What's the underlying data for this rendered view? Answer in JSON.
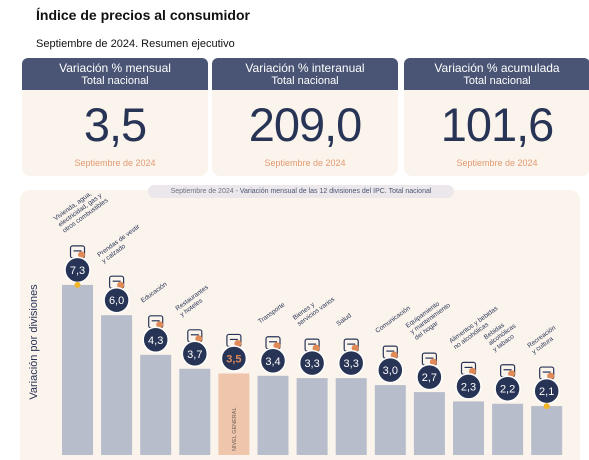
{
  "page": {
    "title": "Índice de precios al consumidor",
    "subtitle": "Septiembre de 2024. Resumen ejecutivo"
  },
  "kpis": [
    {
      "title": "Variación % mensual",
      "scope": "Total nacional",
      "value": "3,5",
      "date": "Septiembre de 2024"
    },
    {
      "title": "Variación % interanual",
      "scope": "Total nacional",
      "value": "209,0",
      "date": "Septiembre de 2024"
    },
    {
      "title": "Variación % acumulada",
      "scope": "Total nacional",
      "value": "101,6",
      "date": "Septiembre de 2024"
    }
  ],
  "chart_title": {
    "date_part": "Septiembre de 2024 - ",
    "main_part": "Variación mensual de las 12 divisiones del IPC. Total nacional"
  },
  "colors": {
    "header": "#4a5575",
    "card_bg": "#fbf4ec",
    "bar": "#b7bdca",
    "bar_highlight": "#efc6ac",
    "badge": "#283456",
    "badge_highlight_text": "#d9895c",
    "accent": "#f2b428",
    "date_text": "#e29a72"
  },
  "chart_data": {
    "type": "bar",
    "title": "Variación mensual de las 12 divisiones del IPC. Total nacional",
    "ylabel": "Variación por divisiones",
    "xlabel": "",
    "ylim": [
      0,
      8
    ],
    "grid": false,
    "categories": [
      "Vivienda, agua, electricidad, gas y otros combustibles",
      "Prendas de vestir y calzado",
      "Educación",
      "Restaurantes y hoteles",
      "Nivel general",
      "Transporte",
      "Bienes y servicios varios",
      "Salud",
      "Comunicación",
      "Equipamiento y mantenimiento del hogar",
      "Alimentos y bebidas no alcohólicas",
      "Bebidas alcohólicas y tabaco",
      "Recreación y cultura"
    ],
    "labels": [
      "7,3",
      "6,0",
      "4,3",
      "3,7",
      "3,5",
      "3,4",
      "3,3",
      "3,3",
      "3,0",
      "2,7",
      "2,3",
      "2,2",
      "2,1"
    ],
    "values": [
      7.3,
      6.0,
      4.3,
      3.7,
      3.5,
      3.4,
      3.3,
      3.3,
      3.0,
      2.7,
      2.3,
      2.2,
      2.1
    ],
    "highlight_index": 4,
    "highlight_bar_text": "NIVEL GENERAL",
    "category_display": [
      [
        "Vivienda, agua,",
        "electricidad, gas y",
        "otros combustibles"
      ],
      [
        "Prendas de vestir",
        "y calzado"
      ],
      [
        "Educación"
      ],
      [
        "Restaurantes",
        "y hoteles"
      ],
      [],
      [
        "Transporte"
      ],
      [
        "Bienes y",
        "servicios varios"
      ],
      [
        "Salud"
      ],
      [
        "Comunicación"
      ],
      [
        "Equipamiento",
        "y mantenimiento",
        "del hogar"
      ],
      [
        "Alimentos y bebidas",
        "no alcohólicas"
      ],
      [
        "Bebidas",
        "alcohólicas",
        "y tabaco"
      ],
      [
        "Recreación",
        "y cultura"
      ]
    ],
    "icons": [
      "house-utilities-icon",
      "clothing-icon",
      "education-icon",
      "restaurant-icon",
      "general-basket-icon",
      "transport-icon",
      "various-goods-icon",
      "health-icon",
      "communication-icon",
      "household-icon",
      "food-icon",
      "beverages-icon",
      "recreation-icon"
    ],
    "marker_indices": [
      0,
      12
    ]
  }
}
